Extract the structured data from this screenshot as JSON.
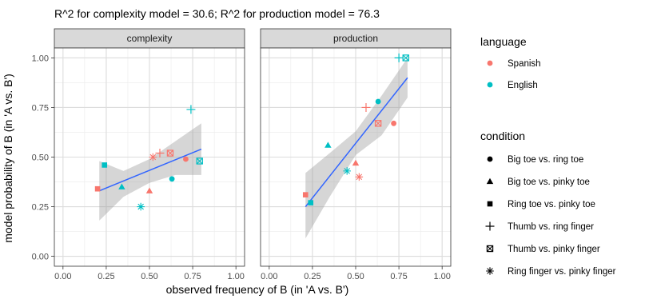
{
  "chart_data": {
    "type": "scatter",
    "title": "R^2 for complexity model = 30.6; R^2 for production model = 76.3",
    "xlabel": "observed frequency of B (in 'A vs. B')",
    "ylabel": "model probability of B (in 'A vs. B')",
    "xlim": [
      0,
      1
    ],
    "ylim": [
      0,
      1
    ],
    "x_ticks": [
      "0.00",
      "0.25",
      "0.50",
      "0.75",
      "1.00"
    ],
    "y_ticks": [
      "0.00",
      "0.25",
      "0.50",
      "0.75",
      "1.00"
    ],
    "grid": true,
    "fit": "linear regression line with 95% confidence band",
    "fit_color": "#3366FF",
    "band_color": "#999999",
    "legend_position": "right",
    "legends": [
      {
        "title": "language",
        "kind": "color",
        "items": [
          {
            "label": "Spanish",
            "color": "#F8766D"
          },
          {
            "label": "English",
            "color": "#00BFC4"
          }
        ]
      },
      {
        "title": "condition",
        "kind": "shape",
        "items": [
          {
            "label": "Big toe vs. ring toe",
            "shape": "circle"
          },
          {
            "label": "Big toe vs. pinky toe",
            "shape": "triangle"
          },
          {
            "label": "Ring toe vs. pinky toe",
            "shape": "square"
          },
          {
            "label": "Thumb vs. ring finger",
            "shape": "plus"
          },
          {
            "label": "Thumb vs. pinky finger",
            "shape": "boxed-x"
          },
          {
            "label": "Ring finger vs. pinky finger",
            "shape": "asterisk"
          }
        ]
      }
    ],
    "panels": [
      {
        "name": "complexity",
        "fit_line": {
          "x": [
            0.21,
            0.8
          ],
          "y": [
            0.33,
            0.54
          ]
        },
        "band": {
          "x": [
            0.21,
            0.35,
            0.5,
            0.65,
            0.8
          ],
          "upper": [
            0.48,
            0.43,
            0.49,
            0.58,
            0.67
          ],
          "lower": [
            0.18,
            0.3,
            0.37,
            0.41,
            0.41
          ]
        },
        "points": [
          {
            "language": "Spanish",
            "condition": "Big toe vs. ring toe",
            "x": 0.71,
            "y": 0.49
          },
          {
            "language": "English",
            "condition": "Big toe vs. ring toe",
            "x": 0.63,
            "y": 0.39
          },
          {
            "language": "Spanish",
            "condition": "Big toe vs. pinky toe",
            "x": 0.5,
            "y": 0.33
          },
          {
            "language": "English",
            "condition": "Big toe vs. pinky toe",
            "x": 0.34,
            "y": 0.35
          },
          {
            "language": "Spanish",
            "condition": "Ring toe vs. pinky toe",
            "x": 0.2,
            "y": 0.34
          },
          {
            "language": "English",
            "condition": "Ring toe vs. pinky toe",
            "x": 0.24,
            "y": 0.46
          },
          {
            "language": "Spanish",
            "condition": "Thumb vs. ring finger",
            "x": 0.56,
            "y": 0.52
          },
          {
            "language": "English",
            "condition": "Thumb vs. ring finger",
            "x": 0.74,
            "y": 0.74
          },
          {
            "language": "Spanish",
            "condition": "Thumb vs. pinky finger",
            "x": 0.62,
            "y": 0.52
          },
          {
            "language": "English",
            "condition": "Thumb vs. pinky finger",
            "x": 0.79,
            "y": 0.48
          },
          {
            "language": "Spanish",
            "condition": "Ring finger vs. pinky finger",
            "x": 0.52,
            "y": 0.5
          },
          {
            "language": "English",
            "condition": "Ring finger vs. pinky finger",
            "x": 0.45,
            "y": 0.25
          }
        ]
      },
      {
        "name": "production",
        "fit_line": {
          "x": [
            0.21,
            0.8
          ],
          "y": [
            0.25,
            0.9
          ]
        },
        "band": {
          "x": [
            0.21,
            0.35,
            0.5,
            0.65,
            0.8
          ],
          "upper": [
            0.42,
            0.52,
            0.63,
            0.81,
            1.0
          ],
          "lower": [
            0.09,
            0.3,
            0.51,
            0.61,
            0.8
          ]
        },
        "points": [
          {
            "language": "Spanish",
            "condition": "Big toe vs. ring toe",
            "x": 0.72,
            "y": 0.67
          },
          {
            "language": "English",
            "condition": "Big toe vs. ring toe",
            "x": 0.63,
            "y": 0.78
          },
          {
            "language": "Spanish",
            "condition": "Big toe vs. pinky toe",
            "x": 0.5,
            "y": 0.47
          },
          {
            "language": "English",
            "condition": "Big toe vs. pinky toe",
            "x": 0.34,
            "y": 0.56
          },
          {
            "language": "Spanish",
            "condition": "Ring toe vs. pinky toe",
            "x": 0.21,
            "y": 0.31
          },
          {
            "language": "English",
            "condition": "Ring toe vs. pinky toe",
            "x": 0.24,
            "y": 0.27
          },
          {
            "language": "Spanish",
            "condition": "Thumb vs. ring finger",
            "x": 0.56,
            "y": 0.75
          },
          {
            "language": "English",
            "condition": "Thumb vs. ring finger",
            "x": 0.75,
            "y": 1.0
          },
          {
            "language": "Spanish",
            "condition": "Thumb vs. pinky finger",
            "x": 0.63,
            "y": 0.67
          },
          {
            "language": "English",
            "condition": "Thumb vs. pinky finger",
            "x": 0.79,
            "y": 1.0
          },
          {
            "language": "Spanish",
            "condition": "Ring finger vs. pinky finger",
            "x": 0.52,
            "y": 0.4
          },
          {
            "language": "English",
            "condition": "Ring finger vs. pinky finger",
            "x": 0.45,
            "y": 0.43
          }
        ]
      }
    ]
  }
}
